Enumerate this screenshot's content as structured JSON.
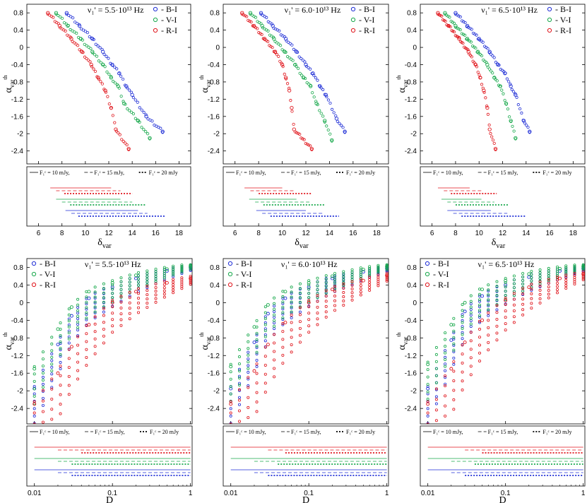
{
  "figure": {
    "legend_labels": [
      "B-I",
      "V-I",
      "R-I"
    ],
    "flux_labels": [
      "F₁ᶜ = 10 mJy,",
      "F₁ᶜ = 15 mJy,",
      "F₁ᶜ = 20 mJy"
    ],
    "colors": {
      "B-I": "#1f2ed6",
      "V-I": "#16a84a",
      "R-I": "#e0141b"
    }
  },
  "chart_data": [
    {
      "type": "scatter",
      "title": "ν₁' = 5.5·10¹³ Hz",
      "xlabel": "δvar",
      "ylabel": "αvar th",
      "xlim": [
        5,
        19
      ],
      "ylim": [
        -2.7,
        1.0
      ],
      "xticks": [
        6,
        8,
        10,
        12,
        14,
        16,
        18
      ],
      "yticks": [
        0.8,
        0.4,
        0,
        -0.4,
        -0.8,
        -1.2,
        -1.6,
        -2,
        -2.4
      ],
      "xtick_labels": [
        "6",
        "8",
        "10",
        "12",
        "14",
        "16",
        "18"
      ],
      "ytick_labels": [
        "0.8",
        "0.4",
        "0",
        "-0.4",
        "-0.8",
        "-1.2",
        "-1.6",
        "-2",
        "-2.4"
      ],
      "series": [
        {
          "name": "B-I",
          "x": [
            8.4,
            9.5,
            10.6,
            11.5,
            12.3,
            12.9,
            13.5,
            14.0,
            15.2,
            16.6
          ],
          "y": [
            0.8,
            0.5,
            0.2,
            -0.1,
            -0.4,
            -0.6,
            -0.9,
            -1.1,
            -1.6,
            -1.95
          ]
        },
        {
          "name": "V-I",
          "x": [
            7.5,
            8.5,
            9.6,
            10.6,
            11.5,
            12.2,
            12.8,
            13.3,
            14.5,
            15.5
          ],
          "y": [
            0.8,
            0.5,
            0.2,
            -0.1,
            -0.4,
            -0.7,
            -0.9,
            -1.3,
            -1.7,
            -2.1
          ]
        },
        {
          "name": "R-I",
          "x": [
            6.8,
            7.8,
            8.8,
            9.7,
            10.5,
            11.1,
            11.7,
            12.2,
            12.6,
            13.7
          ],
          "y": [
            0.8,
            0.5,
            0.2,
            -0.1,
            -0.4,
            -0.7,
            -1.0,
            -1.4,
            -1.9,
            -2.35
          ]
        }
      ],
      "range_bars": [
        {
          "name": "R-I",
          "flux": [
            10,
            15,
            20
          ],
          "xmin": [
            7.0,
            7.5,
            8.2
          ],
          "xmax": [
            12.2,
            13.0,
            14.0
          ]
        },
        {
          "name": "V-I",
          "flux": [
            10,
            15,
            20
          ],
          "xmin": [
            7.5,
            8.0,
            8.7
          ],
          "xmax": [
            13.0,
            14.0,
            15.2
          ]
        },
        {
          "name": "B-I",
          "flux": [
            10,
            15,
            20
          ],
          "xmin": [
            8.3,
            8.8,
            9.4
          ],
          "xmax": [
            14.5,
            15.3,
            16.8
          ]
        }
      ]
    },
    {
      "type": "scatter",
      "title": "ν₁' = 6.0·10¹³ Hz",
      "xlabel": "δvar",
      "ylabel": "αvar th",
      "xlim": [
        5,
        19
      ],
      "ylim": [
        -2.7,
        1.0
      ],
      "xticks": [
        6,
        8,
        10,
        12,
        14,
        16,
        18
      ],
      "yticks": [
        0.8,
        0.4,
        0,
        -0.4,
        -0.8,
        -1.2,
        -1.6,
        -2,
        -2.4
      ],
      "xtick_labels": [
        "6",
        "8",
        "10",
        "12",
        "14",
        "16",
        "18"
      ],
      "ytick_labels": [
        "0.8",
        "0.4",
        "0",
        "-0.4",
        "-0.8",
        "-1.2",
        "-1.6",
        "-2",
        "-2.4"
      ],
      "series": [
        {
          "name": "B-I",
          "x": [
            8.2,
            9.2,
            10.3,
            11.2,
            12.0,
            12.6,
            13.2,
            13.7,
            14.6,
            15.3
          ],
          "y": [
            0.8,
            0.5,
            0.2,
            -0.1,
            -0.4,
            -0.6,
            -0.9,
            -1.1,
            -1.65,
            -1.95
          ]
        },
        {
          "name": "V-I",
          "x": [
            7.3,
            8.3,
            9.3,
            10.2,
            11.1,
            11.8,
            12.4,
            12.9,
            13.6,
            14.2
          ],
          "y": [
            0.8,
            0.5,
            0.2,
            -0.1,
            -0.4,
            -0.7,
            -0.9,
            -1.3,
            -1.7,
            -2.15
          ]
        },
        {
          "name": "R-I",
          "x": [
            6.6,
            7.6,
            8.5,
            9.4,
            10.0,
            10.3,
            10.6,
            10.8,
            11.0,
            12.5
          ],
          "y": [
            0.8,
            0.5,
            0.2,
            -0.1,
            -0.4,
            -0.7,
            -1.0,
            -1.4,
            -1.9,
            -2.35
          ]
        }
      ],
      "range_bars": [
        {
          "name": "R-I",
          "flux": [
            10,
            15,
            20
          ],
          "xmin": [
            6.8,
            7.3,
            8.0
          ],
          "xmax": [
            10.0,
            11.0,
            12.5
          ]
        },
        {
          "name": "V-I",
          "flux": [
            10,
            15,
            20
          ],
          "xmin": [
            7.2,
            7.7,
            8.4
          ],
          "xmax": [
            11.2,
            12.3,
            13.6
          ]
        },
        {
          "name": "B-I",
          "flux": [
            10,
            15,
            20
          ],
          "xmin": [
            7.8,
            8.3,
            9.0
          ],
          "xmax": [
            12.0,
            13.5,
            14.8
          ]
        }
      ]
    },
    {
      "type": "scatter",
      "title": "ν₁' = 6.5·10¹³ Hz",
      "xlabel": "δvar",
      "ylabel": "αvar th",
      "xlim": [
        5,
        19
      ],
      "ylim": [
        -2.7,
        1.0
      ],
      "xticks": [
        6,
        8,
        10,
        12,
        14,
        16,
        18
      ],
      "yticks": [
        0.8,
        0.4,
        0,
        -0.4,
        -0.8,
        -1.2,
        -1.6,
        -2,
        -2.4
      ],
      "xtick_labels": [
        "6",
        "8",
        "10",
        "12",
        "14",
        "16",
        "18"
      ],
      "ytick_labels": [
        "0.8",
        "0.4",
        "0",
        "-0.4",
        "-0.8",
        "-1.2",
        "-1.6",
        "-2",
        "-2.4"
      ],
      "series": [
        {
          "name": "B-I",
          "x": [
            8.0,
            9.0,
            10.0,
            10.9,
            11.6,
            12.2,
            12.7,
            13.1,
            13.8,
            14.3
          ],
          "y": [
            0.8,
            0.5,
            0.2,
            -0.1,
            -0.4,
            -0.6,
            -0.9,
            -1.1,
            -1.7,
            -1.95
          ]
        },
        {
          "name": "V-I",
          "x": [
            7.1,
            8.0,
            9.0,
            9.9,
            10.7,
            11.3,
            11.8,
            12.3,
            12.7,
            13.1
          ],
          "y": [
            0.8,
            0.5,
            0.2,
            -0.1,
            -0.4,
            -0.7,
            -0.9,
            -1.3,
            -1.7,
            -2.1
          ]
        },
        {
          "name": "R-I",
          "x": [
            6.5,
            7.4,
            8.3,
            9.1,
            9.7,
            10.1,
            10.4,
            10.7,
            10.9,
            11.4
          ],
          "y": [
            0.8,
            0.5,
            0.2,
            -0.1,
            -0.4,
            -0.7,
            -1.0,
            -1.4,
            -1.9,
            -2.35
          ]
        }
      ],
      "range_bars": [
        {
          "name": "R-I",
          "flux": [
            10,
            15,
            20
          ],
          "xmin": [
            6.5,
            7.0,
            7.6
          ],
          "xmax": [
            9.2,
            10.2,
            11.5
          ]
        },
        {
          "name": "V-I",
          "flux": [
            10,
            15,
            20
          ],
          "xmin": [
            6.8,
            7.3,
            8.0
          ],
          "xmax": [
            10.2,
            11.3,
            12.5
          ]
        },
        {
          "name": "B-I",
          "flux": [
            10,
            15,
            20
          ],
          "xmin": [
            7.3,
            7.8,
            8.5
          ],
          "xmax": [
            11.0,
            12.4,
            14.0
          ]
        }
      ]
    },
    {
      "type": "scatter",
      "title": "ν₁' = 5.5·10¹³ Hz",
      "xlabel": "D",
      "ylabel": "αvar th",
      "xscale": "log",
      "xlim": [
        0.008,
        1.05
      ],
      "ylim": [
        -2.75,
        1.0
      ],
      "xticks": [
        0.01,
        0.1,
        1
      ],
      "xtick_labels": [
        "0.01",
        "0.1",
        "1"
      ],
      "yticks": [
        0.8,
        0.4,
        0,
        -0.4,
        -0.8,
        -1.2,
        -1.6,
        -2,
        -2.4
      ],
      "ytick_labels": [
        "0.8",
        "0.4",
        "0",
        "-0.4",
        "-0.8",
        "-1.2",
        "-1.6",
        "-2",
        "-2.4"
      ],
      "series": [
        {
          "name": "B-I",
          "x": [
            0.01,
            0.02,
            0.03,
            0.05,
            0.1,
            0.2,
            0.5,
            1.0
          ],
          "y": [
            -1.95,
            -0.95,
            -0.3,
            0.1,
            0.35,
            0.55,
            0.72,
            0.8
          ]
        },
        {
          "name": "V-I",
          "x": [
            0.01,
            0.02,
            0.03,
            0.05,
            0.1,
            0.2,
            0.5,
            1.0
          ],
          "y": [
            -1.5,
            -0.6,
            -0.1,
            0.25,
            0.45,
            0.62,
            0.76,
            0.83
          ]
        },
        {
          "name": "R-I",
          "x": [
            0.01,
            0.02,
            0.03,
            0.05,
            0.1,
            0.2,
            0.5,
            1.0
          ],
          "y": [
            -2.3,
            -1.6,
            -1.0,
            -0.5,
            0.0,
            0.25,
            0.45,
            0.55
          ]
        }
      ],
      "range_bars": [
        {
          "name": "R-I",
          "flux": [
            10,
            15,
            20
          ],
          "xmin": [
            0.01,
            0.02,
            0.04
          ],
          "xmax": [
            1.0,
            1.0,
            1.0
          ]
        },
        {
          "name": "V-I",
          "flux": [
            10,
            15,
            20
          ],
          "xmin": [
            0.01,
            0.02,
            0.03
          ],
          "xmax": [
            1.0,
            1.0,
            1.0
          ]
        },
        {
          "name": "B-I",
          "flux": [
            10,
            15,
            20
          ],
          "xmin": [
            0.01,
            0.02,
            0.03
          ],
          "xmax": [
            1.0,
            1.0,
            1.0
          ]
        }
      ]
    },
    {
      "type": "scatter",
      "title": "ν₁' = 6.0·10¹³ Hz",
      "xlabel": "D",
      "ylabel": "αvar th",
      "xscale": "log",
      "xlim": [
        0.008,
        1.05
      ],
      "ylim": [
        -2.75,
        1.0
      ],
      "xticks": [
        0.01,
        0.1,
        1
      ],
      "xtick_labels": [
        "0.01",
        "0.1",
        "1"
      ],
      "yticks": [
        0.8,
        0.4,
        0,
        -0.4,
        -0.8,
        -1.2,
        -1.6,
        -2,
        -2.4
      ],
      "ytick_labels": [
        "0.8",
        "0.4",
        "0",
        "-0.4",
        "-0.8",
        "-1.2",
        "-1.6",
        "-2",
        "-2.4"
      ],
      "series": [
        {
          "name": "B-I",
          "x": [
            0.01,
            0.02,
            0.03,
            0.05,
            0.1,
            0.2,
            0.5,
            1.0
          ],
          "y": [
            -1.95,
            -0.9,
            -0.25,
            0.1,
            0.35,
            0.55,
            0.7,
            0.78
          ]
        },
        {
          "name": "V-I",
          "x": [
            0.01,
            0.02,
            0.03,
            0.05,
            0.1,
            0.2,
            0.5,
            1.0
          ],
          "y": [
            -1.45,
            -0.55,
            -0.05,
            0.25,
            0.45,
            0.6,
            0.75,
            0.82
          ]
        },
        {
          "name": "R-I",
          "x": [
            0.01,
            0.02,
            0.03,
            0.05,
            0.1,
            0.2,
            0.5,
            1.0
          ],
          "y": [
            -2.3,
            -1.55,
            -0.95,
            -0.45,
            0.0,
            0.3,
            0.5,
            0.62
          ]
        }
      ],
      "range_bars": [
        {
          "name": "R-I",
          "flux": [
            10,
            15,
            20
          ],
          "xmin": [
            0.01,
            0.03,
            0.05
          ],
          "xmax": [
            1.0,
            1.0,
            1.0
          ]
        },
        {
          "name": "V-I",
          "flux": [
            10,
            15,
            20
          ],
          "xmin": [
            0.01,
            0.02,
            0.04
          ],
          "xmax": [
            1.0,
            1.0,
            1.0
          ]
        },
        {
          "name": "B-I",
          "flux": [
            10,
            15,
            20
          ],
          "xmin": [
            0.01,
            0.02,
            0.03
          ],
          "xmax": [
            1.0,
            1.0,
            1.0
          ]
        }
      ]
    },
    {
      "type": "scatter",
      "title": "ν₁' = 6.5·10¹³ Hz",
      "xlabel": "D",
      "ylabel": "αvar th",
      "xscale": "log",
      "xlim": [
        0.008,
        1.05
      ],
      "ylim": [
        -2.75,
        1.0
      ],
      "xticks": [
        0.01,
        0.1,
        1
      ],
      "xtick_labels": [
        "0.01",
        "0.1",
        "1"
      ],
      "yticks": [
        0.8,
        0.4,
        0,
        -0.4,
        -0.8,
        -1.2,
        -1.6,
        -2,
        -2.4
      ],
      "ytick_labels": [
        "0.8",
        "0.4",
        "0",
        "-0.4",
        "-0.8",
        "-1.2",
        "-1.6",
        "-2",
        "-2.4"
      ],
      "series": [
        {
          "name": "B-I",
          "x": [
            0.01,
            0.02,
            0.03,
            0.05,
            0.1,
            0.2,
            0.5,
            1.0
          ],
          "y": [
            -1.95,
            -0.85,
            -0.2,
            0.15,
            0.4,
            0.58,
            0.72,
            0.78
          ]
        },
        {
          "name": "V-I",
          "x": [
            0.01,
            0.02,
            0.03,
            0.05,
            0.1,
            0.2,
            0.5,
            1.0
          ],
          "y": [
            -1.4,
            -0.5,
            0.0,
            0.3,
            0.5,
            0.65,
            0.77,
            0.82
          ]
        },
        {
          "name": "R-I",
          "x": [
            0.01,
            0.02,
            0.03,
            0.05,
            0.1,
            0.2,
            0.5,
            1.0
          ],
          "y": [
            -2.3,
            -1.5,
            -0.9,
            -0.4,
            0.05,
            0.35,
            0.55,
            0.65
          ]
        }
      ],
      "range_bars": [
        {
          "name": "R-I",
          "flux": [
            10,
            15,
            20
          ],
          "xmin": [
            0.01,
            0.03,
            0.05
          ],
          "xmax": [
            1.0,
            1.0,
            1.0
          ]
        },
        {
          "name": "V-I",
          "flux": [
            10,
            15,
            20
          ],
          "xmin": [
            0.01,
            0.02,
            0.04
          ],
          "xmax": [
            1.0,
            1.0,
            1.0
          ]
        },
        {
          "name": "B-I",
          "flux": [
            10,
            15,
            20
          ],
          "xmin": [
            0.01,
            0.02,
            0.03
          ],
          "xmax": [
            1.0,
            1.0,
            1.0
          ]
        }
      ]
    }
  ]
}
